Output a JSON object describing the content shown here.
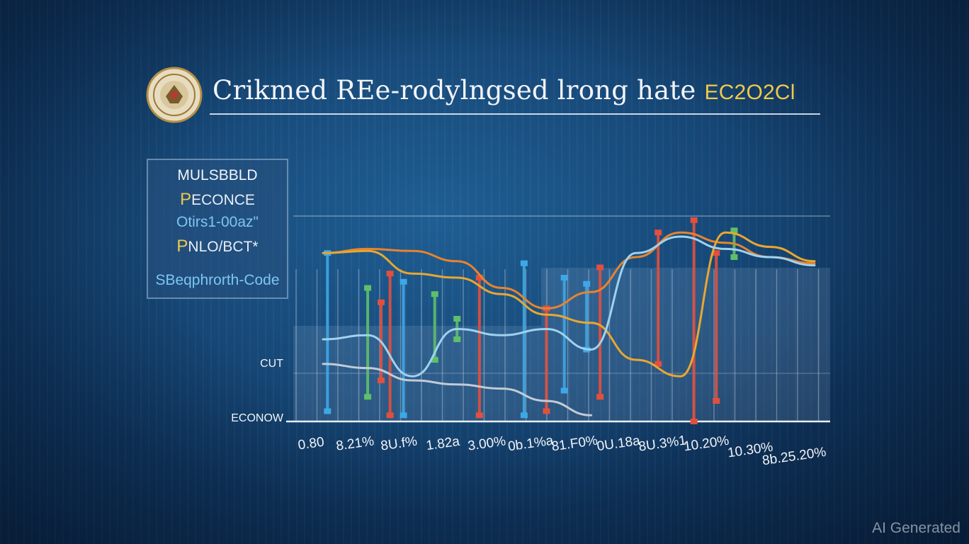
{
  "header": {
    "title": "Crikmed REe-rodylngsed lrong hate",
    "title_accent": "EC2O2Cl"
  },
  "legend_box": {
    "line1": "MULSBBLD",
    "line2_initial": "P",
    "line2_rest": "ECONCE",
    "line3": "Otirs1-00az\"",
    "line4_initial": "P",
    "line4_rest": "NLO/BCT*",
    "line5": "SBeqphrorth-Code"
  },
  "watermark": "AI Generated",
  "colors": {
    "orange": "#e8832e",
    "gold": "#e9a72f",
    "light_blue": "#9fd2ee",
    "blue": "#3ea8e6",
    "red": "#e2503d",
    "green": "#5fbf6a",
    "seal_ring": "#c8a85a"
  },
  "chart_data": {
    "type": "line",
    "title": "",
    "y_labels": [
      "CUT",
      "ECONOW"
    ],
    "x_tick_labels": [
      "0.80",
      "8.21%",
      "8U.f%",
      "1.82a",
      "3.00%",
      "0b.1%a",
      "81.F0%",
      "0U.18a",
      "8U.3%1",
      "10.20%",
      "10.30%",
      "8b.25.20%"
    ],
    "x_domain": [
      0,
      11
    ],
    "y_domain": [
      0,
      100
    ],
    "grid": true,
    "series": [
      {
        "color": "#e8832e",
        "x": [
          0,
          1,
          2,
          3,
          4,
          5,
          6,
          7,
          8,
          9,
          10,
          11
        ],
        "y": [
          82,
          84,
          83,
          78,
          65,
          55,
          63,
          80,
          92,
          87,
          80,
          77
        ]
      },
      {
        "color": "#e9a72f",
        "x": [
          0,
          1,
          2,
          3,
          4,
          5,
          6,
          7,
          8,
          9,
          10,
          11
        ],
        "y": [
          82,
          83,
          72,
          70,
          62,
          52,
          48,
          30,
          22,
          92,
          85,
          78
        ]
      },
      {
        "color": "#9fd2ee",
        "x": [
          0,
          1,
          2,
          3,
          4,
          5,
          6,
          7,
          8,
          9,
          10,
          11
        ],
        "y": [
          40,
          42,
          22,
          45,
          42,
          45,
          35,
          82,
          90,
          84,
          80,
          76
        ]
      },
      {
        "color": "#c3cbd6",
        "x": [
          0,
          1,
          2,
          3,
          4,
          5,
          6
        ],
        "y": [
          28,
          26,
          20,
          18,
          16,
          10,
          3
        ]
      }
    ],
    "markers": [
      {
        "x": 0.1,
        "low": 5,
        "high": 82,
        "color": "#3ea8e6"
      },
      {
        "x": 1.0,
        "low": 12,
        "high": 65,
        "color": "#5fbf6a"
      },
      {
        "x": 1.3,
        "low": 20,
        "high": 58,
        "color": "#e2503d"
      },
      {
        "x": 1.5,
        "low": 3,
        "high": 72,
        "color": "#e2503d"
      },
      {
        "x": 1.8,
        "low": 3,
        "high": 68,
        "color": "#3ea8e6"
      },
      {
        "x": 2.5,
        "low": 30,
        "high": 62,
        "color": "#5fbf6a"
      },
      {
        "x": 3.0,
        "low": 40,
        "high": 50,
        "color": "#5fbf6a"
      },
      {
        "x": 3.5,
        "low": 3,
        "high": 70,
        "color": "#e2503d"
      },
      {
        "x": 4.5,
        "low": 3,
        "high": 77,
        "color": "#3ea8e6"
      },
      {
        "x": 5.0,
        "low": 5,
        "high": 55,
        "color": "#e2503d"
      },
      {
        "x": 5.4,
        "low": 15,
        "high": 70,
        "color": "#3ea8e6"
      },
      {
        "x": 5.9,
        "low": 35,
        "high": 67,
        "color": "#3ea8e6"
      },
      {
        "x": 6.2,
        "low": 12,
        "high": 75,
        "color": "#e2503d"
      },
      {
        "x": 7.5,
        "low": 28,
        "high": 92,
        "color": "#e2503d"
      },
      {
        "x": 8.3,
        "low": 0,
        "high": 98,
        "color": "#e2503d"
      },
      {
        "x": 8.8,
        "low": 10,
        "high": 82,
        "color": "#e2503d"
      },
      {
        "x": 9.2,
        "low": 80,
        "high": 93,
        "color": "#5fbf6a"
      }
    ]
  }
}
